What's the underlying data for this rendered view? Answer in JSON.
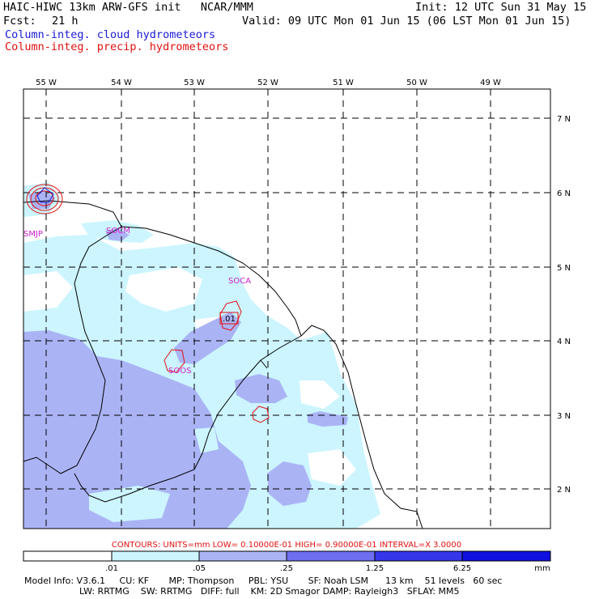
{
  "header": {
    "title": "HAIC-HIWC 13km ARW-GFS init   NCAR/MMM",
    "init": "Init: 12 UTC Sun 31 May 15",
    "fcst_label": "Fcst:",
    "fcst_value": "21 h",
    "valid": "Valid: 09 UTC Mon 01 Jun 15 (06 LST Mon 01 Jun 15)",
    "field1": "Column-integ. cloud hydrometeors",
    "field2": "Column-integ. precip. hydrometeors"
  },
  "map": {
    "lon_labels": [
      "55 W",
      "54 W",
      "53 W",
      "52 W",
      "51 W",
      "50 W",
      "49 W"
    ],
    "lat_labels": [
      "7 N",
      "6 N",
      "5 N",
      "4 N",
      "3 N",
      "2 N"
    ],
    "stations": [
      "SMJP",
      "SOCM",
      "SOCA",
      "SOOS"
    ],
    "contour_label": ".01"
  },
  "contours_line": "CONTOURS:  UNITS=mm  LOW= 0.10000E-01  HIGH= 0.90000E-01  INTERVAL=X  3.0000",
  "colorbar": {
    "ticks": [
      ".01",
      ".05",
      ".25",
      "1.25",
      "6.25"
    ],
    "unit": "mm",
    "colors": [
      "#ffffff",
      "#ccf5ff",
      "#aab4f5",
      "#6e6ef0",
      "#3535ea",
      "#1010e0"
    ]
  },
  "model_info": {
    "line1": "Model Info: V3.6.1     CU: KF       MP: Thompson     PBL: YSU       SF: Noah LSM      13 km    51 levels   60 sec",
    "line2": "LW: RRTMG    SW: RRTMG   DIFF: full    KM: 2D Smagor DAMP: Rayleigh3   SFLAY: MM5"
  },
  "colors": {
    "cloud_contour": "#1a1ad6",
    "precip_contour": "#e01010",
    "station_label": "#d020d0"
  }
}
